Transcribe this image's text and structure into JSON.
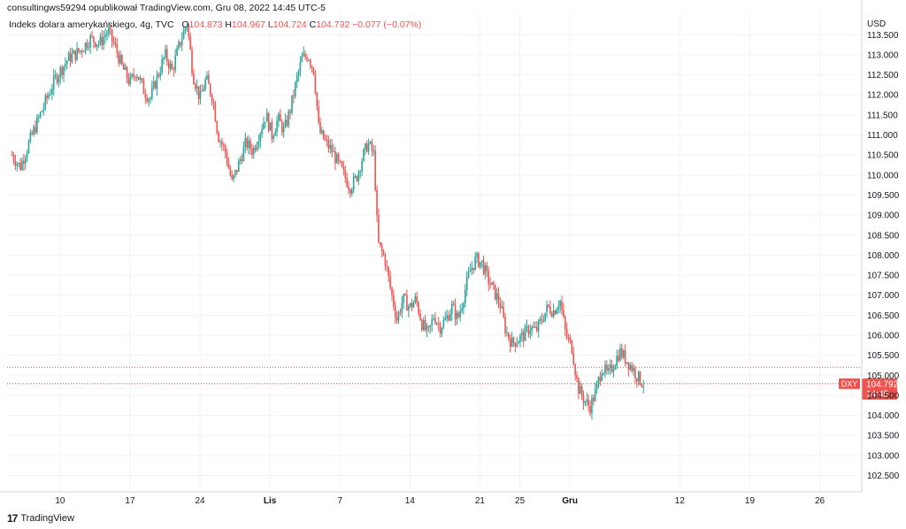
{
  "header": {
    "publisher_text": "consultingws59294 opublikował TradingView.com, Gru 08, 2022 14:45 UTC-5"
  },
  "legend": {
    "title": "Indeks dolara amerykańskiego, 4g, TVC",
    "o_label": "O",
    "o_value": "104.873",
    "h_label": "H",
    "h_value": "104.967",
    "l_label": "L",
    "l_value": "104.724",
    "c_label": "C",
    "c_value": "104.792",
    "change": "−0.077 (−0.07%)"
  },
  "footer": {
    "logo_text": "17",
    "brand": "TradingView"
  },
  "colors": {
    "up": "#26a69a",
    "down": "#ef5350",
    "grid": "#f0f3fa",
    "axis_text": "#131722",
    "dotted_line": "#ef5350"
  },
  "chart_data": {
    "type": "candlestick",
    "currency_label": "USD",
    "ylim": [
      102.0,
      114.0
    ],
    "y_ticks": [
      "102.500",
      "103.000",
      "103.500",
      "104.000",
      "104.500",
      "105.000",
      "105.500",
      "106.000",
      "106.500",
      "107.000",
      "107.500",
      "108.000",
      "108.500",
      "109.000",
      "109.500",
      "110.000",
      "110.500",
      "111.000",
      "111.500",
      "112.000",
      "112.500",
      "113.000",
      "113.500"
    ],
    "x_tick_labels": [
      {
        "label": "10",
        "day": 10
      },
      {
        "label": "17",
        "day": 17
      },
      {
        "label": "24",
        "day": 24
      },
      {
        "label": "Lis",
        "day": 31
      },
      {
        "label": "7",
        "day": 38
      },
      {
        "label": "14",
        "day": 45
      },
      {
        "label": "21",
        "day": 52
      },
      {
        "label": "25",
        "day": 56
      },
      {
        "label": "Gru",
        "day": 61
      },
      {
        "label": "12",
        "day": 72
      },
      {
        "label": "19",
        "day": 79
      },
      {
        "label": "26",
        "day": 86
      }
    ],
    "x_day_range": [
      4.7,
      90.2
    ],
    "current_price": {
      "symbol": "DXY",
      "value": "104.792",
      "time": "14:45",
      "value_num": 104.792
    },
    "dotted_level": 105.2,
    "series": [
      {
        "anchors": [
          [
            5.2,
            110.5
          ],
          [
            6.0,
            110.2
          ],
          [
            7.2,
            111.0
          ],
          [
            8.5,
            111.8
          ],
          [
            9.5,
            112.4
          ],
          [
            10.8,
            112.9
          ],
          [
            12.0,
            113.1
          ],
          [
            13.0,
            113.4
          ],
          [
            14.0,
            113.3
          ],
          [
            14.8,
            113.6
          ],
          [
            15.5,
            113.2
          ],
          [
            16.2,
            112.7
          ],
          [
            17.0,
            112.3
          ],
          [
            17.6,
            112.6
          ],
          [
            18.4,
            112.1
          ],
          [
            19.0,
            111.9
          ],
          [
            19.8,
            112.5
          ],
          [
            20.5,
            113.0
          ],
          [
            21.2,
            112.6
          ],
          [
            22.0,
            113.3
          ],
          [
            22.7,
            113.8
          ],
          [
            23.3,
            112.5
          ],
          [
            24.0,
            111.9
          ],
          [
            24.6,
            112.4
          ],
          [
            25.3,
            111.9
          ],
          [
            25.8,
            111.0
          ],
          [
            26.5,
            110.6
          ],
          [
            27.2,
            109.8
          ],
          [
            27.9,
            110.3
          ],
          [
            28.6,
            110.8
          ],
          [
            29.3,
            110.6
          ],
          [
            30.0,
            111.1
          ],
          [
            30.6,
            111.5
          ],
          [
            31.2,
            111.0
          ],
          [
            31.8,
            111.4
          ],
          [
            32.4,
            111.1
          ],
          [
            33.0,
            111.6
          ],
          [
            33.6,
            112.3
          ],
          [
            34.2,
            112.9
          ],
          [
            34.8,
            113.0
          ],
          [
            35.4,
            112.6
          ],
          [
            35.9,
            111.1
          ],
          [
            36.6,
            110.8
          ],
          [
            37.2,
            110.6
          ],
          [
            37.8,
            110.3
          ],
          [
            38.4,
            110.0
          ],
          [
            39.0,
            109.7
          ],
          [
            39.6,
            109.9
          ],
          [
            40.2,
            110.4
          ],
          [
            40.8,
            110.8
          ],
          [
            41.4,
            110.5
          ],
          [
            41.8,
            108.3
          ],
          [
            42.5,
            107.9
          ],
          [
            43.1,
            107.1
          ],
          [
            43.7,
            106.4
          ],
          [
            44.3,
            106.9
          ],
          [
            45.0,
            106.7
          ],
          [
            45.6,
            106.9
          ],
          [
            46.2,
            106.3
          ],
          [
            46.8,
            106.0
          ],
          [
            47.4,
            106.5
          ],
          [
            48.0,
            106.2
          ],
          [
            48.6,
            106.4
          ],
          [
            49.2,
            106.7
          ],
          [
            49.8,
            106.4
          ],
          [
            50.4,
            107.0
          ],
          [
            51.0,
            107.6
          ],
          [
            51.6,
            107.9
          ],
          [
            52.2,
            107.8
          ],
          [
            52.8,
            107.4
          ],
          [
            53.4,
            107.1
          ],
          [
            54.0,
            106.8
          ],
          [
            54.6,
            106.1
          ],
          [
            55.2,
            105.8
          ],
          [
            55.8,
            105.9
          ],
          [
            56.4,
            106.0
          ],
          [
            57.0,
            106.2
          ],
          [
            57.6,
            106.1
          ],
          [
            58.2,
            106.4
          ],
          [
            58.8,
            106.7
          ],
          [
            59.4,
            106.6
          ],
          [
            60.0,
            106.9
          ],
          [
            60.6,
            106.0
          ],
          [
            61.2,
            105.7
          ],
          [
            61.8,
            104.7
          ],
          [
            62.4,
            104.4
          ],
          [
            63.0,
            104.2
          ],
          [
            63.6,
            104.6
          ],
          [
            64.2,
            105.2
          ],
          [
            64.8,
            105.0
          ],
          [
            65.4,
            105.3
          ],
          [
            66.0,
            105.6
          ],
          [
            66.6,
            105.4
          ],
          [
            67.2,
            105.2
          ],
          [
            67.8,
            104.95
          ],
          [
            68.4,
            104.79
          ]
        ]
      }
    ]
  }
}
